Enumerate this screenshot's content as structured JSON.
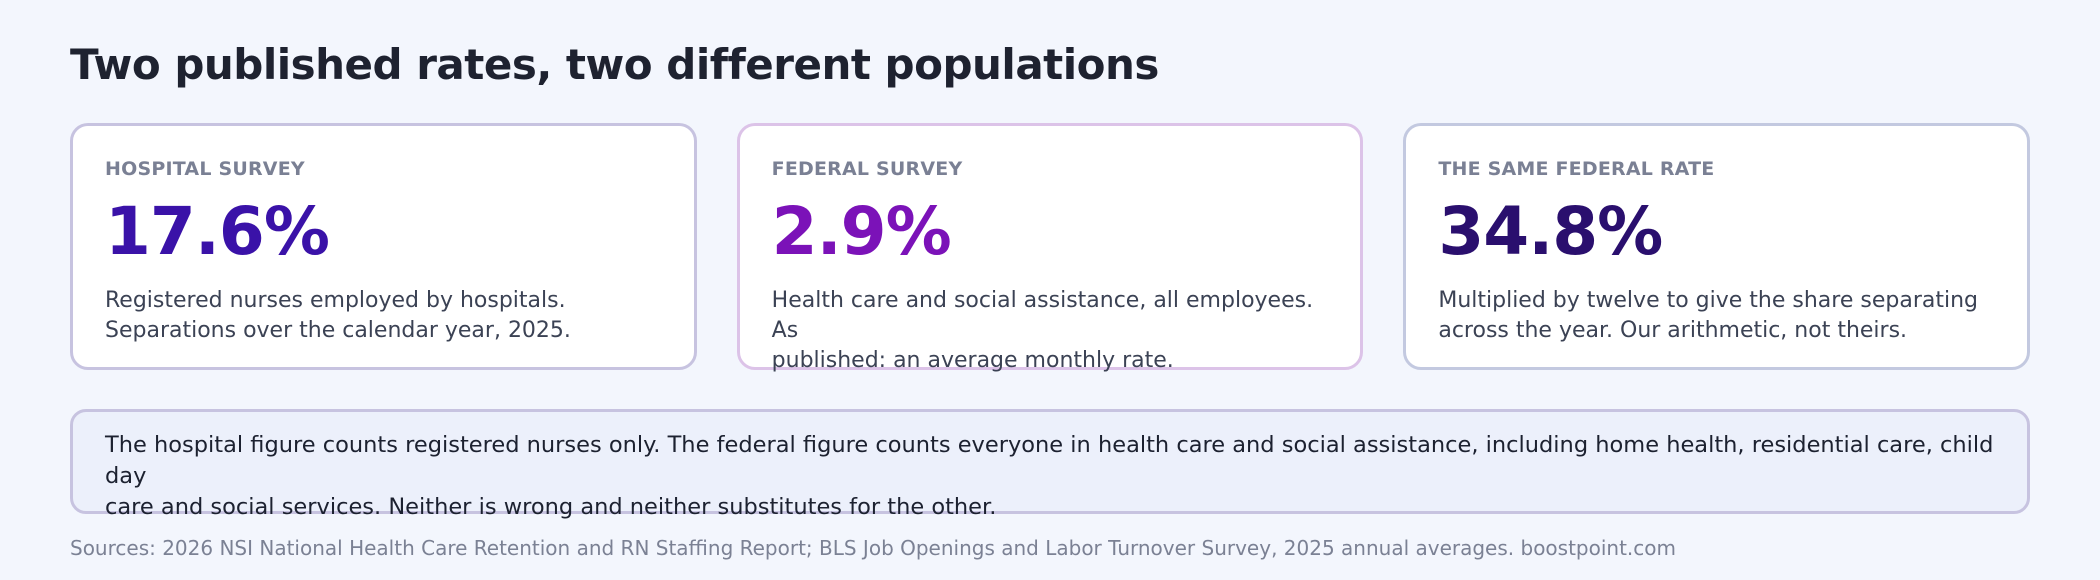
{
  "header": {
    "title": "Two published rates, two different populations"
  },
  "cards": [
    {
      "label": "HOSPITAL SURVEY",
      "value": "17.6%",
      "value_color": "#3a12a8",
      "description_line1": "Registered nurses employed by hospitals.",
      "description_line2": "Separations over the calendar year, 2025."
    },
    {
      "label": "FEDERAL SURVEY",
      "value": "2.9%",
      "value_color": "#7b12b8",
      "description_line1": "Health care and social assistance, all employees. As",
      "description_line2": "published: an average monthly rate."
    },
    {
      "label": "THE SAME FEDERAL RATE",
      "value": "34.8%",
      "value_color": "#2a0f6e",
      "description_line1": "Multiplied by twelve to give the share separating",
      "description_line2": "across the year. Our arithmetic, not theirs."
    }
  ],
  "note": {
    "line1": "The hospital figure counts registered nurses only. The federal figure counts everyone in health care and social assistance, including home health, residential care, child day",
    "line2": "care and social services. Neither is wrong and neither substitutes for the other."
  },
  "footer": {
    "sources": "Sources: 2026 NSI National Health Care Retention and RN Staffing Report; BLS Job Openings and Labor Turnover Survey, 2025 annual averages. boostpoint.com"
  }
}
